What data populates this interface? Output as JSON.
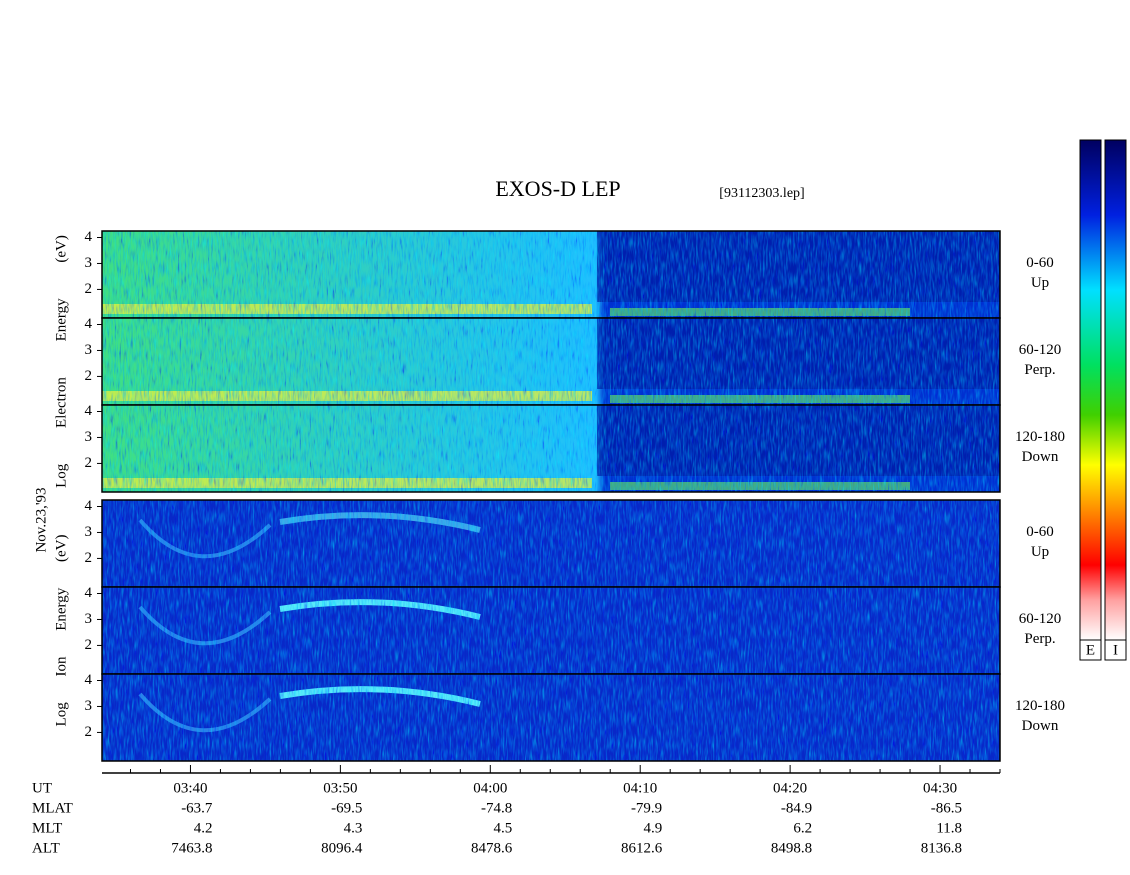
{
  "header": {
    "title": "EXOS-D LEP",
    "file": "[93112303.lep]"
  },
  "date": "Nov.23,'93",
  "groups": [
    {
      "name": "Log Electron Energy (eV)",
      "ylim": [
        0.9,
        4.25
      ],
      "yticks": [
        4,
        3,
        2
      ],
      "panels": [
        {
          "range": "0-60",
          "direction": "Up"
        },
        {
          "range": "60-120",
          "direction": "Perp."
        },
        {
          "range": "120-180",
          "direction": "Down"
        }
      ]
    },
    {
      "name": "Log Ion Energy (eV)",
      "ylim": [
        0.9,
        4.25
      ],
      "yticks": [
        4,
        3,
        2
      ],
      "panels": [
        {
          "range": "0-60",
          "direction": "Up"
        },
        {
          "range": "60-120",
          "direction": "Perp."
        },
        {
          "range": "120-180",
          "direction": "Down"
        }
      ]
    }
  ],
  "time_axis": {
    "label": "UT",
    "xlim": [
      214.1,
      274
    ],
    "xticks": [
      {
        "value": 220,
        "label": "03:40"
      },
      {
        "value": 230,
        "label": "03:50"
      },
      {
        "value": 240,
        "label": "04:00"
      },
      {
        "value": 250,
        "label": "04:10"
      },
      {
        "value": 260,
        "label": "04:20"
      },
      {
        "value": 270,
        "label": "04:30"
      }
    ],
    "minor_ticks": [
      216,
      218,
      222,
      224,
      226,
      228,
      232,
      234,
      236,
      238,
      242,
      244,
      246,
      248,
      252,
      254,
      256,
      258,
      262,
      264,
      266,
      268,
      272,
      274
    ]
  },
  "rows": [
    {
      "label": "MLAT",
      "values": [
        -63.7,
        -69.5,
        -74.8,
        -79.9,
        -84.9,
        -86.5
      ]
    },
    {
      "label": "MLT",
      "values": [
        4.2,
        4.3,
        4.5,
        4.9,
        6.2,
        11.8
      ]
    },
    {
      "label": "ALT",
      "values": [
        7463.8,
        8096.4,
        8478.6,
        8612.6,
        8498.8,
        8136.8
      ]
    }
  ],
  "colorbars": [
    {
      "label": "E"
    },
    {
      "label": "I"
    }
  ]
}
